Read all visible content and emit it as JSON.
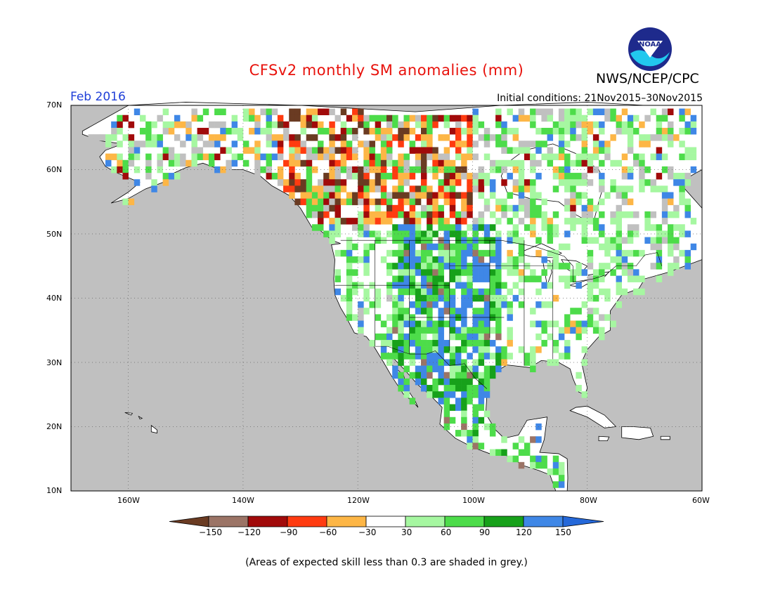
{
  "title": "CFSv2 monthly SM anomalies (mm)",
  "agency": "NWS/NCEP/CPC",
  "logo_text": "NOAA",
  "period": "Feb 2016",
  "initial_conditions": "Initial conditions: 21Nov2015–30Nov2015",
  "latitude_labels": [
    "70N",
    "60N",
    "50N",
    "40N",
    "30N",
    "20N",
    "10N"
  ],
  "longitude_labels": [
    "160W",
    "140W",
    "120W",
    "100W",
    "80W",
    "60W"
  ],
  "colorbar": {
    "ticks": [
      "−150",
      "−120",
      "−90",
      "−60",
      "−30",
      "30",
      "60",
      "90",
      "120",
      "150"
    ],
    "colors": [
      "#6a3b22",
      "#9b7466",
      "#a10a0a",
      "#ff3b10",
      "#fdb646",
      "#ffffff",
      "#a6f7a1",
      "#4ddc4a",
      "#17a11a",
      "#3f87e6",
      "#2568d9"
    ]
  },
  "colors": {
    "ocean": "#c0c0c0",
    "low_skill": "#c0c0c0",
    "land_neutral": "#ffffff",
    "title": "#e8120c",
    "period": "#1f3fd8"
  },
  "footnote": "(Areas of expected skill less than 0.3 are shaded in grey.)"
}
